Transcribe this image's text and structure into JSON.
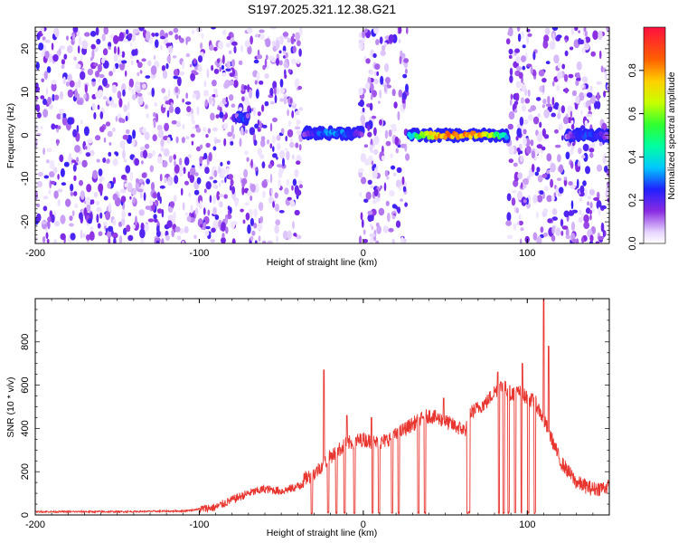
{
  "title": "S197.2025.321.12.38.G21",
  "chart_data": [
    {
      "type": "heatmap",
      "title": "S197.2025.321.12.38.G21",
      "xlabel": "Height of straight line (km)",
      "ylabel": "Frequency (Hz)",
      "xlim": [
        -200,
        150
      ],
      "ylim": [
        -25,
        25
      ],
      "xticks": [
        -200,
        -100,
        0,
        100
      ],
      "yticks": [
        20,
        10,
        0,
        -10,
        -20
      ],
      "colorbar": {
        "label": "Normalized spectral amplitude",
        "range": [
          0,
          1
        ],
        "ticks": [
          "0.0",
          "0.2",
          "0.4",
          "0.6",
          "0.8"
        ],
        "tick_values": [
          0,
          0.2,
          0.4,
          0.6,
          0.8
        ]
      },
      "noise_bands": [
        [
          -200,
          -77
        ],
        [
          -75,
          -38
        ],
        [
          -2,
          27
        ],
        [
          88,
          122
        ],
        [
          123,
          150
        ]
      ],
      "signal_segments": [
        {
          "x": [
            -77,
            -70
          ],
          "freq": 4,
          "amplitude": 0.3
        },
        {
          "x": [
            -36,
            0
          ],
          "freq": 0.5,
          "amplitude": 0.35
        },
        {
          "x": [
            28,
            88
          ],
          "freq": 0,
          "amplitude": 0.95
        },
        {
          "x": [
            124,
            150
          ],
          "freq": 0,
          "amplitude": 0.3
        }
      ]
    },
    {
      "type": "line",
      "xlabel": "Height of straight line (km)",
      "ylabel": "SNR (10 * v/v)",
      "xlim": [
        -200,
        150
      ],
      "ylim": [
        0,
        1000
      ],
      "xticks": [
        -200,
        -100,
        0,
        100
      ],
      "yticks": [
        0,
        200,
        400,
        600,
        800
      ],
      "series_color": "#e8352f",
      "anchors": [
        [
          -200,
          15
        ],
        [
          -150,
          15
        ],
        [
          -110,
          18
        ],
        [
          -90,
          35
        ],
        [
          -80,
          70
        ],
        [
          -70,
          100
        ],
        [
          -60,
          120
        ],
        [
          -50,
          110
        ],
        [
          -40,
          130
        ],
        [
          -35,
          170
        ],
        [
          -30,
          190
        ],
        [
          -20,
          270
        ],
        [
          -10,
          330
        ],
        [
          0,
          350
        ],
        [
          10,
          330
        ],
        [
          20,
          370
        ],
        [
          30,
          420
        ],
        [
          40,
          460
        ],
        [
          48,
          440
        ],
        [
          56,
          410
        ],
        [
          62,
          390
        ],
        [
          65,
          470
        ],
        [
          75,
          520
        ],
        [
          80,
          570
        ],
        [
          85,
          600
        ],
        [
          90,
          560
        ],
        [
          95,
          570
        ],
        [
          100,
          540
        ],
        [
          105,
          520
        ],
        [
          110,
          440
        ],
        [
          115,
          350
        ],
        [
          120,
          250
        ],
        [
          125,
          200
        ],
        [
          130,
          150
        ],
        [
          140,
          120
        ],
        [
          150,
          130
        ]
      ],
      "dropouts": [
        [
          -32,
          -31
        ],
        [
          -22,
          -21
        ],
        [
          -17,
          -16
        ],
        [
          -12,
          -11
        ],
        [
          -6,
          -5
        ],
        [
          5,
          6
        ],
        [
          9,
          10
        ],
        [
          17,
          18
        ],
        [
          21,
          22
        ],
        [
          33,
          34
        ],
        [
          37,
          38
        ],
        [
          63,
          65
        ],
        [
          82,
          83
        ],
        [
          85,
          86
        ],
        [
          88,
          89
        ],
        [
          92,
          93
        ],
        [
          96,
          97
        ],
        [
          100,
          101
        ],
        [
          104,
          105
        ]
      ],
      "spikes": [
        [
          -24,
          670
        ],
        [
          -10,
          460
        ],
        [
          5,
          450
        ],
        [
          49,
          540
        ],
        [
          82,
          660
        ],
        [
          97,
          700
        ],
        [
          110,
          1000
        ],
        [
          113,
          780
        ]
      ]
    }
  ]
}
